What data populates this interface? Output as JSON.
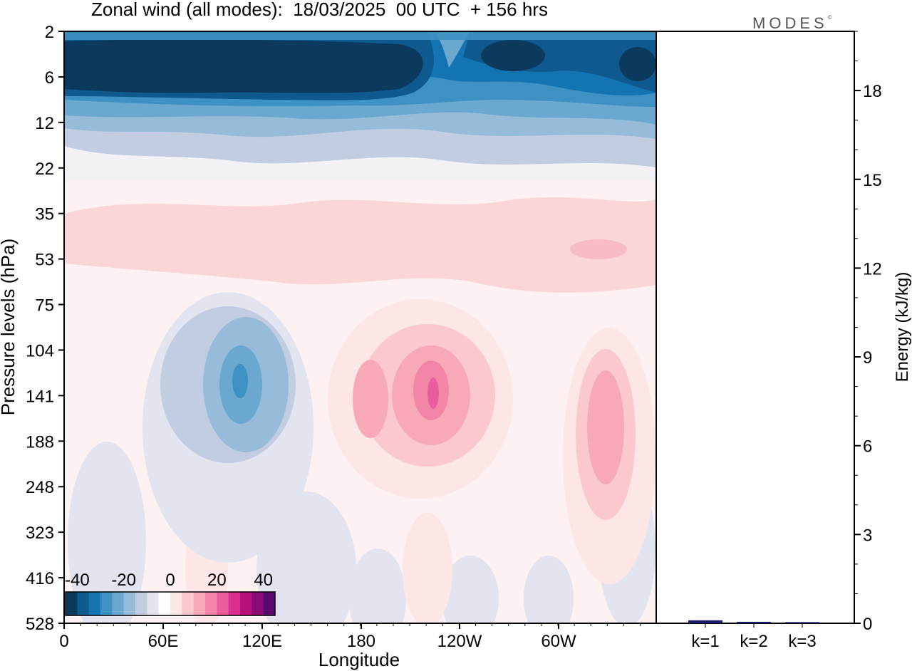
{
  "figure": {
    "title": "Zonal wind (all modes):  18/03/2025  00 UTC  + 156 hrs",
    "brand": "MODES",
    "brand_mark": "©"
  },
  "chart_data": [
    {
      "type": "heatmap",
      "title": "Zonal wind (all modes):  18/03/2025  00 UTC  + 156 hrs",
      "xlabel": "Longitude",
      "ylabel": "Pressure levels (hPa)",
      "x_ticks": [
        "0",
        "60E",
        "120E",
        "180",
        "120W",
        "60W"
      ],
      "y_ticks": [
        "2",
        "6",
        "12",
        "22",
        "35",
        "53",
        "75",
        "104",
        "141",
        "188",
        "248",
        "323",
        "416",
        "528"
      ],
      "colorbar": {
        "labels": [
          "-40",
          "-20",
          "0",
          "20",
          "40"
        ],
        "range": [
          -45,
          45
        ],
        "step": 5,
        "colors": [
          "#0b3a5e",
          "#0e5a8e",
          "#1474b2",
          "#3f91c3",
          "#6aa8cf",
          "#97bcd9",
          "#c2cde2",
          "#e2e4ef",
          "#ffffff",
          "#fde6e6",
          "#fbc9cd",
          "#f8a9b8",
          "#f386a6",
          "#ea5e9b",
          "#d9308f",
          "#b8117f",
          "#8a0a78",
          "#5a0a6e"
        ]
      },
      "features": [
        {
          "region": "upper levels 2-8 hPa, 0-130W",
          "value": -45
        },
        {
          "region": "upper levels 2-8 hPa, 130W-360",
          "value": -35
        },
        {
          "region": "upper levels 8-18 hPa",
          "value": -20
        },
        {
          "region": "35-75 hPa band",
          "value": 7
        },
        {
          "region": "jet core near 110E, 141 hPa",
          "value": -25
        },
        {
          "region": "jet core near 150W, 141 hPa",
          "value": 22
        },
        {
          "region": "jet core near 30W, 141-188 hPa",
          "value": 15
        }
      ]
    },
    {
      "type": "bar",
      "categories": [
        "k=1",
        "k=2",
        "k=3"
      ],
      "values": [
        0.1,
        0.05,
        0.04
      ],
      "ylabel": "Energy (kJ/kg)",
      "ylim": [
        0,
        20
      ],
      "y_ticks": [
        0,
        3,
        6,
        9,
        12,
        15,
        18
      ],
      "bar_color": "#1a1a6e"
    }
  ]
}
